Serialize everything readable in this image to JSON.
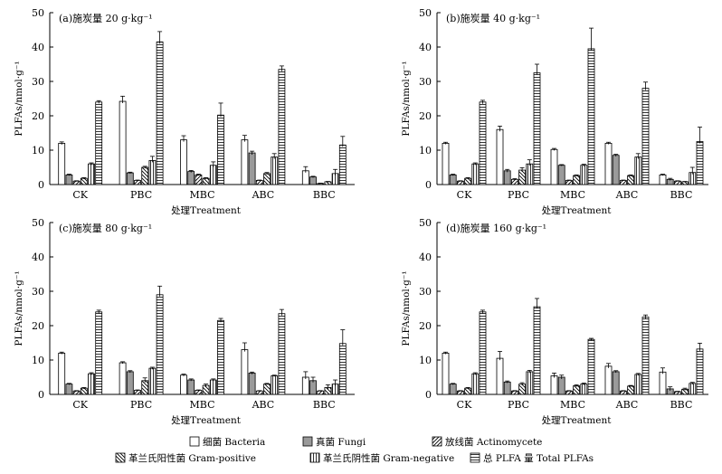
{
  "chart_data": {
    "type": "bar",
    "ylabel": "PLFAs/nmol·g⁻¹",
    "xlabel": "处理Treatment",
    "categories": [
      "CK",
      "PBC",
      "MBC",
      "ABC",
      "BBC"
    ],
    "ylim": [
      0,
      50
    ],
    "yticks": [
      0,
      10,
      20,
      30,
      40,
      50
    ],
    "series_names": [
      "细菌 Bacteria",
      "真菌 Fungi",
      "放线菌 Actinomycete",
      "革兰氏阳性菌 Gram-positive",
      "革兰氏阴性菌 Gram-negative",
      "总 PLFA 量 Total PLFAs"
    ],
    "panels": [
      {
        "title": "(a)施炭量 20 g·kg⁻¹",
        "values": [
          [
            12.0,
            24.2,
            13.0,
            13.0,
            4.0
          ],
          [
            2.8,
            3.4,
            3.8,
            9.2,
            2.2
          ],
          [
            1.0,
            1.2,
            2.8,
            1.2,
            0.3
          ],
          [
            1.8,
            5.0,
            1.8,
            3.2,
            0.8
          ],
          [
            6.0,
            7.0,
            5.6,
            8.0,
            3.2
          ],
          [
            24.0,
            41.5,
            20.2,
            33.5,
            11.5
          ]
        ],
        "errors": [
          [
            0.4,
            1.5,
            1.2,
            1.3,
            1.2
          ],
          [
            0.2,
            0.2,
            0.3,
            0.5,
            0.2
          ],
          [
            0.1,
            0.1,
            0.2,
            0.1,
            0.1
          ],
          [
            0.2,
            0.3,
            0.2,
            0.3,
            0.1
          ],
          [
            0.3,
            1.2,
            1.0,
            1.0,
            1.2
          ],
          [
            0.4,
            3.0,
            3.5,
            1.0,
            2.5
          ]
        ]
      },
      {
        "title": "(b)施炭量 40 g·kg⁻¹",
        "values": [
          [
            12.0,
            16.0,
            10.2,
            12.0,
            2.8
          ],
          [
            2.8,
            4.0,
            5.6,
            8.5,
            1.5
          ],
          [
            1.0,
            1.5,
            1.2,
            1.2,
            1.0
          ],
          [
            1.8,
            4.2,
            2.6,
            2.6,
            0.8
          ],
          [
            6.0,
            6.0,
            5.6,
            8.0,
            3.5
          ],
          [
            24.0,
            32.5,
            39.5,
            28.0,
            12.5
          ]
        ],
        "errors": [
          [
            0.3,
            1.0,
            0.3,
            0.3,
            0.2
          ],
          [
            0.2,
            0.4,
            0.2,
            0.3,
            0.3
          ],
          [
            0.1,
            0.2,
            0.1,
            0.1,
            0.1
          ],
          [
            0.2,
            0.7,
            0.2,
            0.2,
            0.1
          ],
          [
            0.3,
            1.2,
            0.3,
            1.0,
            1.5
          ],
          [
            0.5,
            2.5,
            6.0,
            1.8,
            4.2
          ]
        ]
      },
      {
        "title": "(c)施炭量 80 g·kg⁻¹",
        "values": [
          [
            12.0,
            9.2,
            5.6,
            13.0,
            5.0
          ],
          [
            3.0,
            6.6,
            4.2,
            6.2,
            4.0
          ],
          [
            1.0,
            1.2,
            1.2,
            1.0,
            1.0
          ],
          [
            1.8,
            4.0,
            2.6,
            3.0,
            2.0
          ],
          [
            6.0,
            7.6,
            4.2,
            5.4,
            3.0
          ],
          [
            24.0,
            29.0,
            21.5,
            23.5,
            14.8
          ]
        ],
        "errors": [
          [
            0.3,
            0.3,
            0.3,
            2.0,
            1.6
          ],
          [
            0.2,
            0.3,
            0.3,
            0.3,
            1.0
          ],
          [
            0.1,
            0.1,
            0.1,
            0.1,
            0.1
          ],
          [
            0.2,
            0.8,
            0.4,
            0.2,
            0.8
          ],
          [
            0.3,
            0.3,
            0.3,
            0.2,
            1.2
          ],
          [
            0.5,
            2.5,
            0.6,
            1.2,
            4.0
          ]
        ]
      },
      {
        "title": "(d)施炭量 160 g·kg⁻¹",
        "values": [
          [
            12.0,
            10.5,
            5.4,
            8.2,
            6.5
          ],
          [
            3.0,
            3.6,
            5.0,
            6.6,
            1.6
          ],
          [
            1.0,
            1.0,
            1.0,
            1.0,
            0.8
          ],
          [
            1.8,
            3.0,
            2.5,
            2.4,
            1.5
          ],
          [
            6.0,
            6.6,
            3.0,
            5.8,
            3.2
          ],
          [
            24.0,
            25.5,
            16.0,
            22.5,
            13.2
          ]
        ],
        "errors": [
          [
            0.3,
            2.0,
            0.8,
            0.8,
            1.2
          ],
          [
            0.2,
            0.3,
            0.6,
            0.3,
            0.6
          ],
          [
            0.1,
            0.1,
            0.1,
            0.1,
            0.1
          ],
          [
            0.2,
            0.4,
            0.3,
            0.2,
            0.3
          ],
          [
            0.3,
            0.4,
            0.3,
            0.3,
            0.3
          ],
          [
            0.5,
            2.4,
            0.3,
            0.6,
            1.7
          ]
        ]
      }
    ]
  },
  "legend": {
    "items": [
      {
        "label": "细菌 Bacteria",
        "pattern": "pat-white"
      },
      {
        "label": "真菌 Fungi",
        "pattern": "pat-gray"
      },
      {
        "label": "放线菌 Actinomycete",
        "pattern": "pat-diag-r"
      },
      {
        "label": "革兰氏阳性菌 Gram-positive",
        "pattern": "pat-diag-l"
      },
      {
        "label": "革兰氏阴性菌 Gram-negative",
        "pattern": "pat-vert"
      },
      {
        "label": "总 PLFA 量 Total PLFAs",
        "pattern": "pat-horiz"
      }
    ]
  },
  "colors": {
    "ink": "#000000",
    "fungi_fill": "#9a9a9a",
    "background": "#ffffff"
  }
}
